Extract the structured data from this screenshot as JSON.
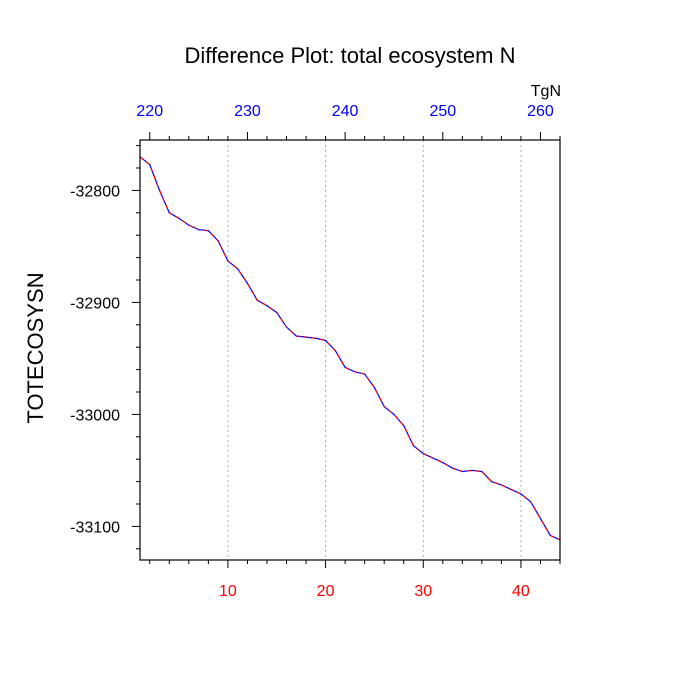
{
  "chart_data": {
    "type": "line",
    "title": "Difference Plot: total ecosystem N",
    "ylabel": "TOTECOSYSN",
    "top_axis_units": "TgN",
    "xlim": [
      1,
      44
    ],
    "ylim": [
      -33130,
      -32755
    ],
    "x_ticks": [
      10,
      20,
      30,
      40
    ],
    "x_tick_labels": [
      "10",
      "20",
      "30",
      "40"
    ],
    "y_ticks": [
      -32800,
      -32900,
      -33000,
      -33100
    ],
    "y_tick_labels": [
      "-32800",
      "-32900",
      "-33000",
      "-33100"
    ],
    "top_axis": {
      "ticks": [
        220,
        230,
        240,
        250,
        260
      ],
      "tick_labels": [
        "220",
        "230",
        "240",
        "250",
        "260"
      ],
      "range": [
        219.0,
        262.0
      ]
    },
    "grid": "vertical dotted at x ticks",
    "colors": {
      "bottom_tick_labels": "#ff0000",
      "top_tick_labels": "#0000ff",
      "line_primary": "#0000ff",
      "line_secondary": "#ff0000"
    },
    "x": [
      1,
      2,
      3,
      4,
      5,
      6,
      7,
      8,
      9,
      10,
      11,
      12,
      13,
      14,
      15,
      16,
      17,
      18,
      19,
      20,
      21,
      22,
      23,
      24,
      25,
      26,
      27,
      28,
      29,
      30,
      31,
      32,
      33,
      34,
      35,
      36,
      37,
      38,
      39,
      40,
      41,
      42,
      43,
      44
    ],
    "series": [
      {
        "values": [
          -32770,
          -32777,
          -32800,
          -32820,
          -32825,
          -32831,
          -32835,
          -32836,
          -32845,
          -32863,
          -32870,
          -32883,
          -32898,
          -32903,
          -32909,
          -32922,
          -32930,
          -32931,
          -32932,
          -32934,
          -32943,
          -32958,
          -32962,
          -32964,
          -32976,
          -32993,
          -33000,
          -33010,
          -33028,
          -33035,
          -33039,
          -33043,
          -33048,
          -33051,
          -33050,
          -33051,
          -33060,
          -33063,
          -33067,
          -33071,
          -33078,
          -33093,
          -33108,
          -33112
        ]
      }
    ]
  }
}
